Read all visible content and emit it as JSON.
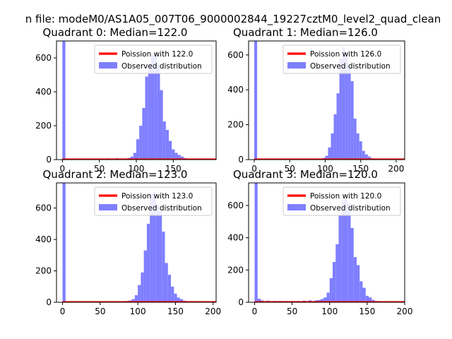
{
  "figure": {
    "suptitle": "n file: modeM0/AS1A05_007T06_9000002844_19227cztM0_level2_quad_clean"
  },
  "colors": {
    "histogram": "#7f7fff",
    "poisson": "#ff0000",
    "axis": "#000000",
    "background": "#ffffff"
  },
  "chart_data": [
    {
      "type": "bar",
      "title": "Quadrant 0: Median=122.0",
      "median": 122.0,
      "xlim": [
        -8,
        208
      ],
      "ylim": [
        0,
        700
      ],
      "xticks": [
        0,
        50,
        100,
        150
      ],
      "yticks": [
        0,
        200,
        400,
        600
      ],
      "xlabel": "",
      "ylabel": "",
      "legend": {
        "placement": "top-right",
        "entries": [
          "Poission with 122.0",
          "Observed distribution"
        ]
      },
      "histogram": {
        "bin_width": 4,
        "bins": [
          [
            0,
            700
          ],
          [
            60,
            7
          ],
          [
            72,
            8
          ],
          [
            80,
            6
          ],
          [
            88,
            10
          ],
          [
            92,
            18
          ],
          [
            96,
            40
          ],
          [
            100,
            120
          ],
          [
            104,
            200
          ],
          [
            108,
            305
          ],
          [
            112,
            490
          ],
          [
            116,
            560
          ],
          [
            120,
            620
          ],
          [
            124,
            625
          ],
          [
            128,
            560
          ],
          [
            132,
            410
          ],
          [
            136,
            225
          ],
          [
            140,
            175
          ],
          [
            144,
            110
          ],
          [
            148,
            60
          ],
          [
            152,
            40
          ],
          [
            156,
            28
          ],
          [
            160,
            18
          ],
          [
            164,
            10
          ],
          [
            168,
            5
          ],
          [
            172,
            3
          ]
        ]
      },
      "poisson": {
        "lambda": 122.0,
        "amplitude": 4
      }
    },
    {
      "type": "bar",
      "title": "Quadrant 1: Median=126.0",
      "median": 126.0,
      "xlim": [
        -8,
        212
      ],
      "ylim": [
        0,
        680
      ],
      "xticks": [
        0,
        50,
        100,
        150,
        200
      ],
      "yticks": [
        0,
        200,
        400,
        600
      ],
      "xlabel": "",
      "ylabel": "",
      "legend": {
        "placement": "top-right",
        "entries": [
          "Poission with 126.0",
          "Observed distribution"
        ]
      },
      "histogram": {
        "bin_width": 4,
        "bins": [
          [
            0,
            680
          ],
          [
            76,
            5
          ],
          [
            88,
            6
          ],
          [
            96,
            10
          ],
          [
            100,
            22
          ],
          [
            104,
            70
          ],
          [
            108,
            150
          ],
          [
            112,
            260
          ],
          [
            116,
            380
          ],
          [
            120,
            580
          ],
          [
            124,
            645
          ],
          [
            128,
            610
          ],
          [
            132,
            540
          ],
          [
            136,
            450
          ],
          [
            140,
            235
          ],
          [
            144,
            150
          ],
          [
            148,
            105
          ],
          [
            152,
            50
          ],
          [
            156,
            30
          ],
          [
            160,
            18
          ],
          [
            164,
            8
          ],
          [
            168,
            4
          ]
        ]
      },
      "poisson": {
        "lambda": 126.0,
        "amplitude": 4
      }
    },
    {
      "type": "bar",
      "title": "Quadrant 2: Median=123.0",
      "median": 123.0,
      "xlim": [
        -8,
        204
      ],
      "ylim": [
        0,
        760
      ],
      "xticks": [
        0,
        50,
        100,
        150,
        200
      ],
      "yticks": [
        0,
        200,
        400,
        600
      ],
      "xlabel": "",
      "ylabel": "",
      "legend": {
        "placement": "top-right",
        "entries": [
          "Poission with 123.0",
          "Observed distribution"
        ]
      },
      "histogram": {
        "bin_width": 4,
        "bins": [
          [
            0,
            760
          ],
          [
            76,
            5
          ],
          [
            84,
            8
          ],
          [
            88,
            12
          ],
          [
            92,
            20
          ],
          [
            96,
            45
          ],
          [
            100,
            110
          ],
          [
            104,
            190
          ],
          [
            108,
            330
          ],
          [
            112,
            500
          ],
          [
            116,
            690
          ],
          [
            120,
            700
          ],
          [
            124,
            610
          ],
          [
            128,
            580
          ],
          [
            132,
            450
          ],
          [
            136,
            250
          ],
          [
            140,
            175
          ],
          [
            144,
            100
          ],
          [
            148,
            55
          ],
          [
            152,
            30
          ],
          [
            156,
            20
          ],
          [
            160,
            10
          ],
          [
            164,
            5
          ]
        ]
      },
      "poisson": {
        "lambda": 123.0,
        "amplitude": 4
      }
    },
    {
      "type": "bar",
      "title": "Quadrant 3: Median=120.0",
      "median": 120.0,
      "xlim": [
        -8,
        200
      ],
      "ylim": [
        0,
        740
      ],
      "xticks": [
        0,
        50,
        100,
        150,
        200
      ],
      "yticks": [
        0,
        200,
        400,
        600
      ],
      "xlabel": "",
      "ylabel": "",
      "legend": {
        "placement": "top-right",
        "entries": [
          "Poission with 120.0",
          "Observed distribution"
        ]
      },
      "histogram": {
        "bin_width": 4,
        "bins": [
          [
            0,
            740
          ],
          [
            4,
            22
          ],
          [
            8,
            12
          ],
          [
            16,
            10
          ],
          [
            24,
            8
          ],
          [
            32,
            8
          ],
          [
            40,
            8
          ],
          [
            48,
            8
          ],
          [
            56,
            8
          ],
          [
            64,
            10
          ],
          [
            72,
            12
          ],
          [
            80,
            12
          ],
          [
            84,
            14
          ],
          [
            88,
            20
          ],
          [
            92,
            30
          ],
          [
            96,
            60
          ],
          [
            100,
            150
          ],
          [
            104,
            250
          ],
          [
            108,
            360
          ],
          [
            112,
            540
          ],
          [
            116,
            630
          ],
          [
            120,
            640
          ],
          [
            124,
            610
          ],
          [
            128,
            460
          ],
          [
            132,
            280
          ],
          [
            136,
            230
          ],
          [
            140,
            130
          ],
          [
            144,
            90
          ],
          [
            148,
            40
          ],
          [
            152,
            30
          ],
          [
            156,
            15
          ],
          [
            160,
            8
          ],
          [
            164,
            4
          ]
        ]
      },
      "poisson": {
        "lambda": 120.0,
        "amplitude": 4
      }
    }
  ]
}
